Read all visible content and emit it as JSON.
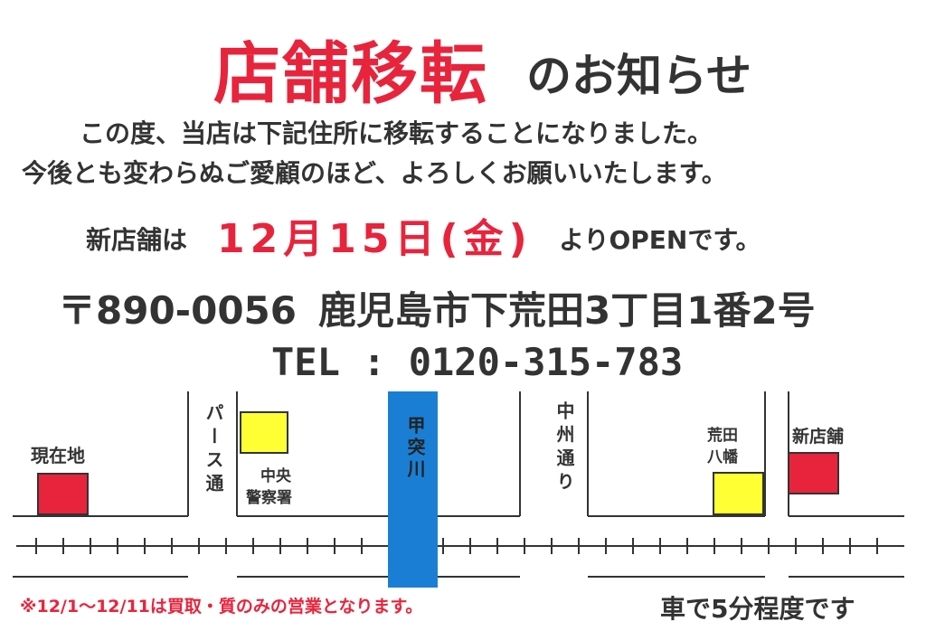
{
  "heading": {
    "main": "店舗移転",
    "sub": "のお知らせ"
  },
  "message": {
    "line1": "この度、当店は下記住所に移転することになりました。",
    "line2": "今後とも変わらぬご愛顧のほど、よろしくお願いいたします。"
  },
  "open": {
    "prefix": "新店舗は",
    "date": "12月15日(金)",
    "suffix": "よりOPENです。"
  },
  "address": {
    "postal": "〒890-0056",
    "location": "鹿児島市下荒田3丁目1番2号"
  },
  "tel": "TEL : 0120-315-783",
  "map": {
    "current_location": "現在地",
    "pars_street": "パース通",
    "police_station": "中央警察署",
    "police_line1": "中央",
    "police_line2": "警察署",
    "river": "甲突川",
    "chushu_street": "中州通り",
    "shrine_line1": "荒田",
    "shrine_line2": "八幡",
    "new_store": "新店舗",
    "colors": {
      "red": "#e8243c",
      "yellow": "#ffff33",
      "river": "#1a7fd4"
    }
  },
  "note": "※12/1〜12/11は買取・質のみの営業となります。",
  "drive_time": "車で5分程度です"
}
